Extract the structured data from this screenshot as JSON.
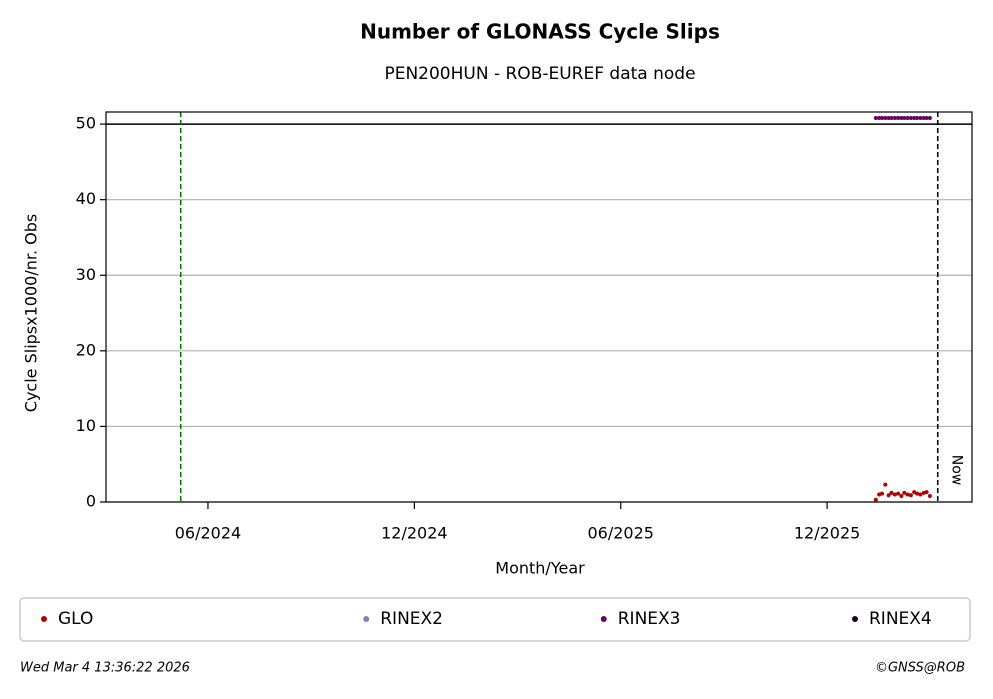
{
  "chart_data": {
    "type": "scatter",
    "title": "Number of GLONASS Cycle Slips",
    "subtitle": "PEN200HUN - ROB-EUREF data node",
    "x_label": "Month/Year",
    "y_label": "Cycle Slipsx1000/nr. Obs",
    "xlim": [
      2024.17,
      2026.268
    ],
    "ylim": [
      0,
      51.6
    ],
    "xticks": [
      {
        "value": 2024.417,
        "label": "06/2024"
      },
      {
        "value": 2024.917,
        "label": "12/2024"
      },
      {
        "value": 2025.417,
        "label": "06/2025"
      },
      {
        "value": 2025.917,
        "label": "12/2025"
      }
    ],
    "yticks": [
      0,
      10,
      20,
      30,
      40,
      50
    ],
    "grid": true,
    "vlines": [
      {
        "value": 2024.351,
        "color": "#007000"
      },
      {
        "value": 2026.185,
        "color": "#000000",
        "label": "Now"
      }
    ],
    "hlines": [
      {
        "value": 50,
        "color": "#000000"
      }
    ],
    "series": [
      {
        "name": "GLO",
        "color": "#b00000",
        "x": [
          2026.035,
          2026.043,
          2026.05,
          2026.058,
          2026.066,
          2026.073,
          2026.081,
          2026.089,
          2026.097,
          2026.104,
          2026.112,
          2026.12,
          2026.128,
          2026.135,
          2026.143,
          2026.151,
          2026.158,
          2026.166
        ],
        "values": [
          0.3,
          1.0,
          1.1,
          2.3,
          0.9,
          1.2,
          1.0,
          1.1,
          0.8,
          1.2,
          1.0,
          0.9,
          1.3,
          1.1,
          1.0,
          1.2,
          1.3,
          0.8
        ]
      },
      {
        "name": "RINEX2",
        "color": "#8080c0",
        "x": [],
        "values": []
      },
      {
        "name": "RINEX3",
        "color": "#660066",
        "x": [
          2026.035,
          2026.043,
          2026.05,
          2026.058,
          2026.066,
          2026.073,
          2026.081,
          2026.089,
          2026.097,
          2026.104,
          2026.112,
          2026.12,
          2026.128,
          2026.135,
          2026.143,
          2026.151,
          2026.158,
          2026.166
        ],
        "values": [
          50.8,
          50.8,
          50.8,
          50.8,
          50.8,
          50.8,
          50.8,
          50.8,
          50.8,
          50.8,
          50.8,
          50.8,
          50.8,
          50.8,
          50.8,
          50.8,
          50.8,
          50.8
        ]
      },
      {
        "name": "RINEX4",
        "color": "#200020",
        "x": [],
        "values": []
      }
    ],
    "footer_left": "Wed Mar  4 13:36:22 2026",
    "footer_right": "©GNSS@ROB"
  }
}
